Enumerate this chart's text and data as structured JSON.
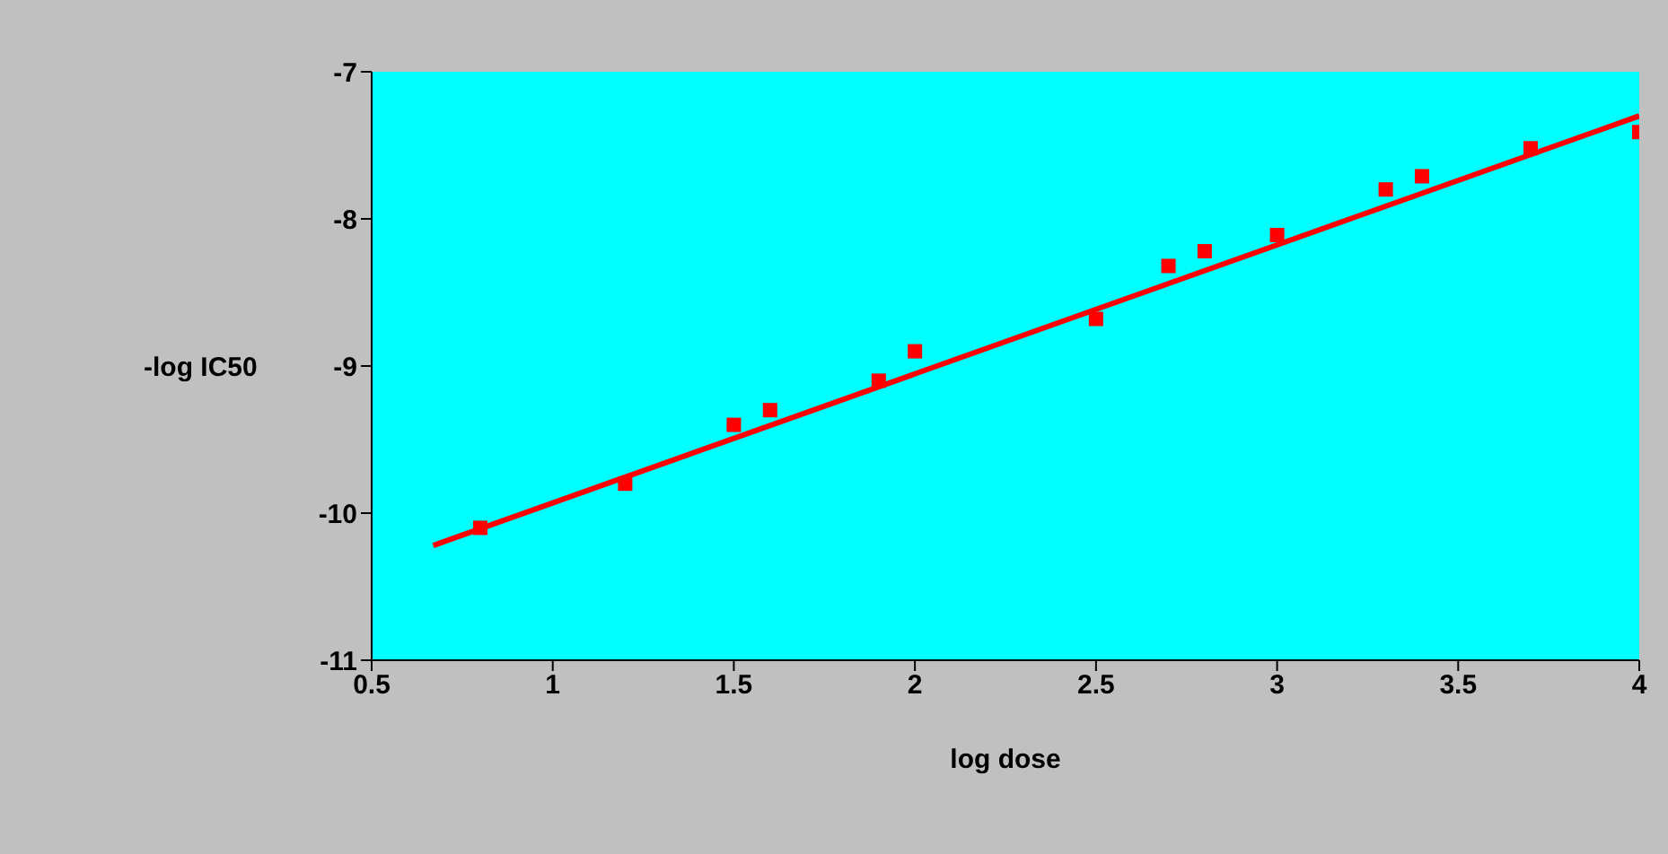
{
  "chart_data": {
    "type": "scatter",
    "xlabel": "log dose",
    "ylabel": "-log IC50",
    "xlim": [
      0.5,
      4
    ],
    "xticks": [
      0.5,
      1,
      1.5,
      2,
      2.5,
      3,
      3.5,
      4
    ],
    "ylim": [
      -11,
      -7
    ],
    "yticks": [
      -11,
      -10,
      -9,
      -8,
      -7
    ],
    "grid": false,
    "series": [
      {
        "marker": "square",
        "color": "#ff0000",
        "x": [
          0.8,
          1.2,
          1.5,
          1.6,
          1.9,
          2.0,
          2.5,
          2.7,
          2.8,
          3.0,
          3.3,
          3.4,
          3.7,
          4.0
        ],
        "values": [
          -10.1,
          -9.8,
          -9.4,
          -9.3,
          -9.1,
          -8.9,
          -8.68,
          -8.32,
          -8.22,
          -8.11,
          -7.8,
          -7.71,
          -7.52,
          -7.41
        ]
      },
      {
        "type": "line",
        "color": "#ff0000",
        "x": [
          0.67,
          4.0
        ],
        "values": [
          -10.22,
          -7.3
        ]
      }
    ]
  }
}
